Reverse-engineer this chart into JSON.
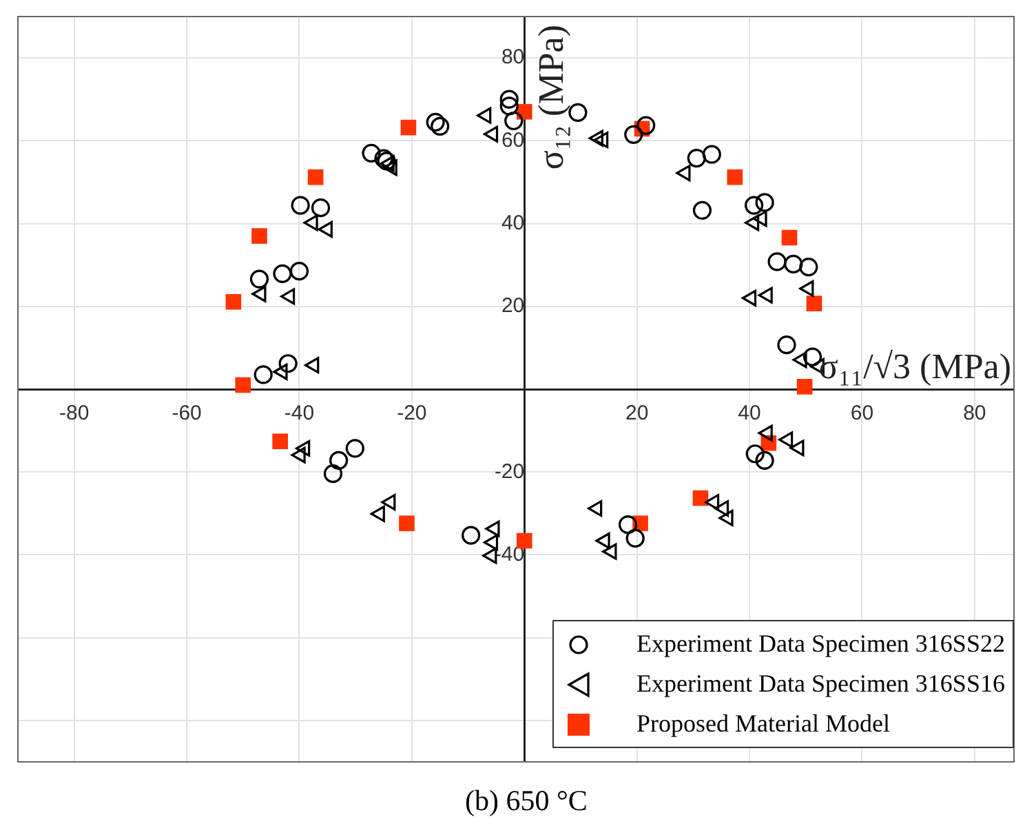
{
  "chart_data": {
    "type": "scatter",
    "title": "(b) 650 °C",
    "xlabel": "σ₁₁/√3 (MPa)",
    "ylabel": "σ₁₂ (MPa)",
    "xlim": [
      -90,
      87
    ],
    "ylim": [
      -90,
      90
    ],
    "xticks": [
      -80,
      -60,
      -40,
      -20,
      {
        "value": 0,
        "label": null
      },
      20,
      40,
      60,
      80
    ],
    "yticks": [
      {
        "value": -80,
        "label": null
      },
      {
        "value": -60,
        "label": null
      },
      -40,
      -20,
      {
        "value": 0,
        "label": null
      },
      20,
      40,
      60,
      80
    ],
    "grid": true,
    "legend": "bottom right",
    "series": [
      {
        "name": "Experiment Data Specimen 316SS22",
        "color": "#000000",
        "marker": "circle",
        "x": [
          -2.7,
          -2.7,
          -1.9,
          -15.8,
          -15.0,
          -27.2,
          -25.0,
          -24.5,
          -39.8,
          -36.2,
          -47.1,
          -43.0,
          -40.0,
          -46.4,
          -42.0,
          9.5,
          19.4,
          21.6,
          30.6,
          33.3,
          31.6,
          40.8,
          42.7,
          44.9,
          47.8,
          50.5,
          46.6,
          51.2,
          -30.1,
          -33.0,
          -34.0,
          -9.5,
          41.0,
          42.7,
          18.4,
          19.7
        ],
        "values": [
          70.0,
          68.4,
          64.8,
          64.5,
          63.5,
          57.0,
          55.7,
          55.1,
          44.4,
          43.8,
          26.6,
          27.9,
          28.5,
          3.5,
          6.2,
          66.8,
          61.5,
          63.7,
          55.8,
          56.7,
          43.2,
          44.4,
          45.1,
          30.8,
          30.2,
          29.5,
          10.7,
          7.8,
          -14.3,
          -17.2,
          -20.4,
          -35.3,
          -15.6,
          -17.2,
          -32.7,
          -36.0
        ]
      },
      {
        "name": "Experiment Data Specimen 316SS16",
        "color": "#000000",
        "marker": "triangle",
        "x": [
          -6.8,
          -5.6,
          -37.6,
          -35.0,
          -46.8,
          -41.7,
          -37.4,
          -43.0,
          -24.0,
          -23.5,
          13.1,
          14.0,
          28.6,
          40.8,
          42.2,
          40.3,
          43.2,
          50.5,
          49.3,
          52.4,
          -39.0,
          -39.8,
          -25.7,
          -23.8,
          -5.3,
          -5.6,
          -5.8,
          43.2,
          46.8,
          48.8,
          12.9,
          33.7,
          35.4,
          36.2,
          14.3,
          15.5
        ],
        "values": [
          66.1,
          61.6,
          40.2,
          38.6,
          23.0,
          22.4,
          5.8,
          4.2,
          54.5,
          53.5,
          60.6,
          60.2,
          52.2,
          40.2,
          41.2,
          22.0,
          22.7,
          24.3,
          7.1,
          5.5,
          -14.3,
          -15.9,
          -30.1,
          -27.3,
          -33.7,
          -37.0,
          -40.2,
          -10.6,
          -12.2,
          -14.2,
          -28.8,
          -27.3,
          -28.8,
          -31.1,
          -36.6,
          -39.2
        ]
      },
      {
        "name": "Proposed Material Model",
        "color": "#ff3300",
        "marker": "square",
        "x": [
          -20.6,
          -37.1,
          -47.1,
          -51.7,
          -50.0,
          0.0,
          20.9,
          37.4,
          47.1,
          51.5,
          49.8,
          -43.4,
          -20.9,
          0.0,
          43.4,
          31.3,
          20.6
        ],
        "values": [
          63.2,
          51.2,
          37.0,
          21.1,
          1.0,
          67.0,
          62.9,
          51.2,
          36.6,
          20.7,
          0.6,
          -12.6,
          -32.4,
          -36.6,
          -13.0,
          -26.3,
          -32.4
        ]
      }
    ]
  }
}
